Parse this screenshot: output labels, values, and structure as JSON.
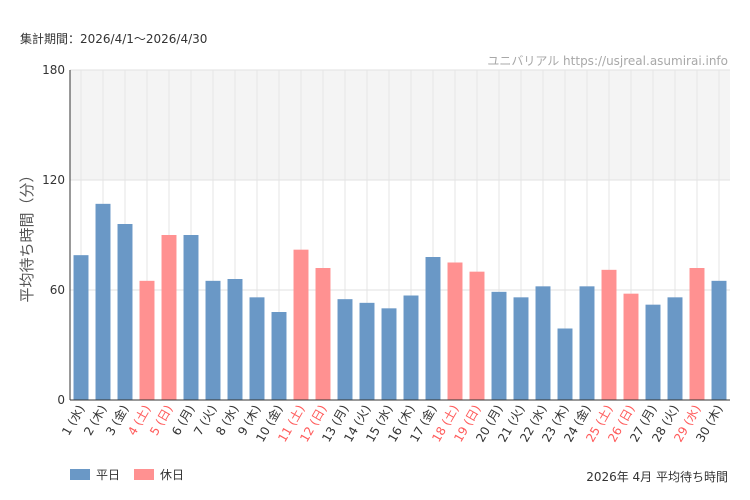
{
  "header": {
    "period_label": "集計期間：2026/4/1～2026/4/30",
    "site_label": "ユニバリアル  https://usjreal.asumirai.info"
  },
  "legend": [
    {
      "label": "平日",
      "color": "#6a98c6"
    },
    {
      "label": "休日",
      "color": "#ff9191"
    }
  ],
  "footer": {
    "chart_title": "2026年 4月 平均待ち時間"
  },
  "colors": {
    "weekday": "#6a98c6",
    "holiday": "#ff9191",
    "holiday_text": "#ff5a5a",
    "band": "#f4f4f4"
  },
  "chart_data": {
    "type": "bar",
    "title": "2026年 4月 平均待ち時間",
    "ylabel": "平均待ち時間（分）",
    "ylim": [
      0,
      180
    ],
    "yticks": [
      0,
      60,
      120,
      180
    ],
    "highlight_band": [
      120,
      180
    ],
    "categories": [
      "1 (水)",
      "2 (木)",
      "3 (金)",
      "4 (土)",
      "5 (日)",
      "6 (月)",
      "7 (火)",
      "8 (水)",
      "9 (木)",
      "10 (金)",
      "11 (土)",
      "12 (日)",
      "13 (月)",
      "14 (火)",
      "15 (水)",
      "16 (木)",
      "17 (金)",
      "18 (土)",
      "19 (日)",
      "20 (月)",
      "21 (火)",
      "22 (水)",
      "23 (木)",
      "24 (金)",
      "25 (土)",
      "26 (日)",
      "27 (月)",
      "28 (火)",
      "29 (水)",
      "30 (木)"
    ],
    "values": [
      79,
      107,
      96,
      65,
      90,
      90,
      65,
      66,
      56,
      48,
      82,
      72,
      55,
      53,
      50,
      57,
      78,
      75,
      70,
      59,
      56,
      62,
      39,
      62,
      71,
      58,
      52,
      56,
      72,
      65
    ],
    "day_type": [
      "weekday",
      "weekday",
      "weekday",
      "holiday",
      "holiday",
      "weekday",
      "weekday",
      "weekday",
      "weekday",
      "weekday",
      "holiday",
      "holiday",
      "weekday",
      "weekday",
      "weekday",
      "weekday",
      "weekday",
      "holiday",
      "holiday",
      "weekday",
      "weekday",
      "weekday",
      "weekday",
      "weekday",
      "holiday",
      "holiday",
      "weekday",
      "weekday",
      "holiday",
      "weekday"
    ]
  }
}
